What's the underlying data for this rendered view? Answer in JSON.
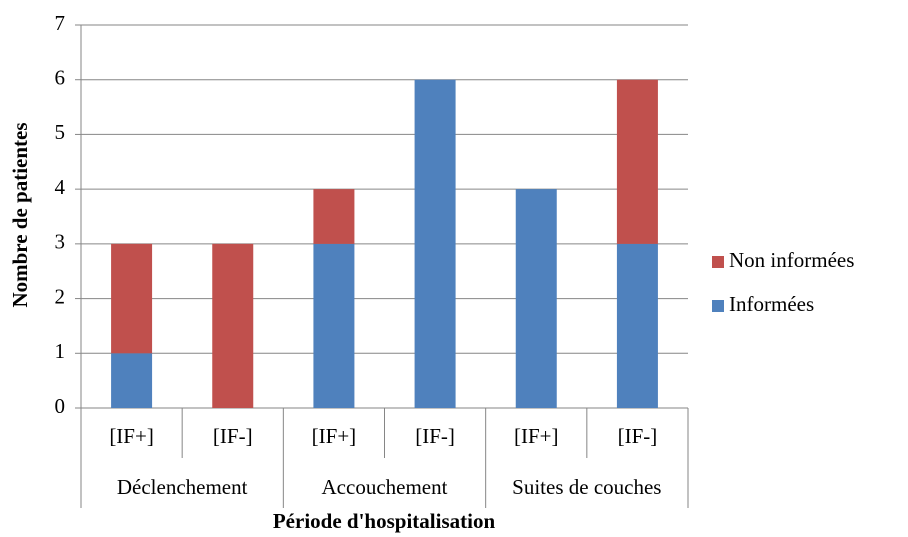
{
  "chart_data": {
    "type": "stacked_bar",
    "y_label": "Nombre de patientes",
    "x_label": "Période d'hospitalisation",
    "categories": [
      "[IF+]",
      "[IF-]",
      "[IF+]",
      "[IF-]",
      "[IF+]",
      "[IF-]"
    ],
    "groups": [
      "Déclenchement",
      "Accouchement",
      "Suites de couches"
    ],
    "series": [
      {
        "name": "Informées",
        "color": "#4f81bd",
        "values": [
          1,
          0,
          3,
          6,
          4,
          3
        ]
      },
      {
        "name": "Non informées",
        "color": "#c0504d",
        "values": [
          2,
          3,
          1,
          0,
          0,
          3
        ]
      }
    ],
    "ylim": [
      0,
      7
    ],
    "yticks": [
      0,
      1,
      2,
      3,
      4,
      5,
      6,
      7
    ],
    "grid": true,
    "legend": "right"
  }
}
